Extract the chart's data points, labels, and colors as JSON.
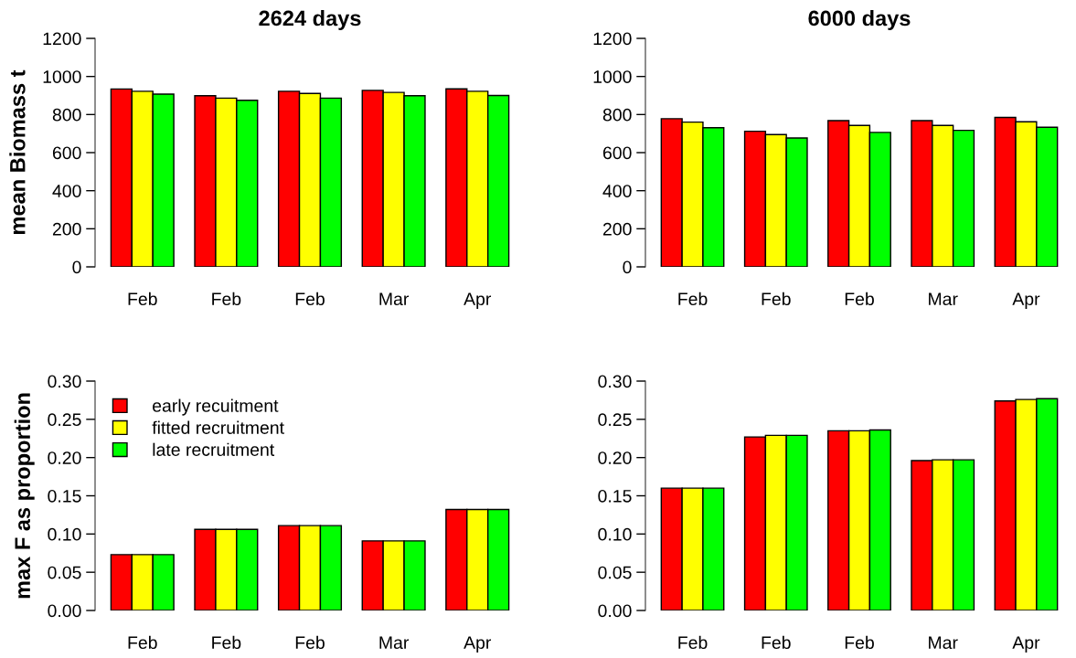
{
  "chart_data": [
    {
      "type": "bar",
      "title": "2624 days",
      "ylabel": "mean Biomass t",
      "categories": [
        "Feb",
        "Feb",
        "Feb",
        "Mar",
        "Apr"
      ],
      "ylim": [
        0,
        1200
      ],
      "yticks": [
        0,
        200,
        400,
        600,
        800,
        1000,
        1200
      ],
      "grid": false,
      "legend": false,
      "series": [
        {
          "color": "#ff0000",
          "values": [
            934,
            899,
            922,
            927,
            935
          ]
        },
        {
          "color": "#ffff00",
          "values": [
            922,
            886,
            911,
            916,
            922
          ]
        },
        {
          "color": "#00ff00",
          "values": [
            907,
            875,
            886,
            899,
            900
          ]
        }
      ]
    },
    {
      "type": "bar",
      "title": "6000 days",
      "categories": [
        "Feb",
        "Feb",
        "Feb",
        "Mar",
        "Apr"
      ],
      "ylim": [
        0,
        1200
      ],
      "yticks": [
        0,
        200,
        400,
        600,
        800,
        1000,
        1200
      ],
      "grid": false,
      "legend": false,
      "series": [
        {
          "color": "#ff0000",
          "values": [
            778,
            712,
            768,
            768,
            785
          ]
        },
        {
          "color": "#ffff00",
          "values": [
            760,
            695,
            743,
            743,
            762
          ]
        },
        {
          "color": "#00ff00",
          "values": [
            731,
            677,
            706,
            717,
            733
          ]
        }
      ]
    },
    {
      "type": "bar",
      "ylabel": "max F as proportion",
      "categories": [
        "Feb",
        "Feb",
        "Feb",
        "Mar",
        "Apr"
      ],
      "ylim": [
        0,
        0.3
      ],
      "yticks": [
        {
          "value": 0,
          "label": "0.00"
        },
        {
          "value": 0.05,
          "label": "0.05"
        },
        {
          "value": 0.1,
          "label": "0.10"
        },
        {
          "value": 0.15,
          "label": "0.15"
        },
        {
          "value": 0.2,
          "label": "0.20"
        },
        {
          "value": 0.25,
          "label": "0.25"
        },
        {
          "value": 0.3,
          "label": "0.30"
        }
      ],
      "grid": false,
      "legend": "top left",
      "series": [
        {
          "name": "early recuitment",
          "color": "#ff0000",
          "values": [
            0.073,
            0.106,
            0.111,
            0.091,
            0.132
          ]
        },
        {
          "name": "fitted recruitment",
          "color": "#ffff00",
          "values": [
            0.073,
            0.106,
            0.111,
            0.091,
            0.132
          ]
        },
        {
          "name": "late recruitment",
          "color": "#00ff00",
          "values": [
            0.073,
            0.106,
            0.111,
            0.091,
            0.132
          ]
        }
      ]
    },
    {
      "type": "bar",
      "categories": [
        "Feb",
        "Feb",
        "Feb",
        "Mar",
        "Apr"
      ],
      "ylim": [
        0,
        0.3
      ],
      "yticks": [
        {
          "value": 0,
          "label": "0.00"
        },
        {
          "value": 0.05,
          "label": "0.05"
        },
        {
          "value": 0.1,
          "label": "0.10"
        },
        {
          "value": 0.15,
          "label": "0.15"
        },
        {
          "value": 0.2,
          "label": "0.20"
        },
        {
          "value": 0.25,
          "label": "0.25"
        },
        {
          "value": 0.3,
          "label": "0.30"
        }
      ],
      "grid": false,
      "legend": false,
      "series": [
        {
          "color": "#ff0000",
          "values": [
            0.16,
            0.227,
            0.235,
            0.196,
            0.274
          ]
        },
        {
          "color": "#ffff00",
          "values": [
            0.16,
            0.229,
            0.235,
            0.197,
            0.276
          ]
        },
        {
          "color": "#00ff00",
          "values": [
            0.16,
            0.229,
            0.236,
            0.197,
            0.277
          ]
        }
      ]
    }
  ]
}
